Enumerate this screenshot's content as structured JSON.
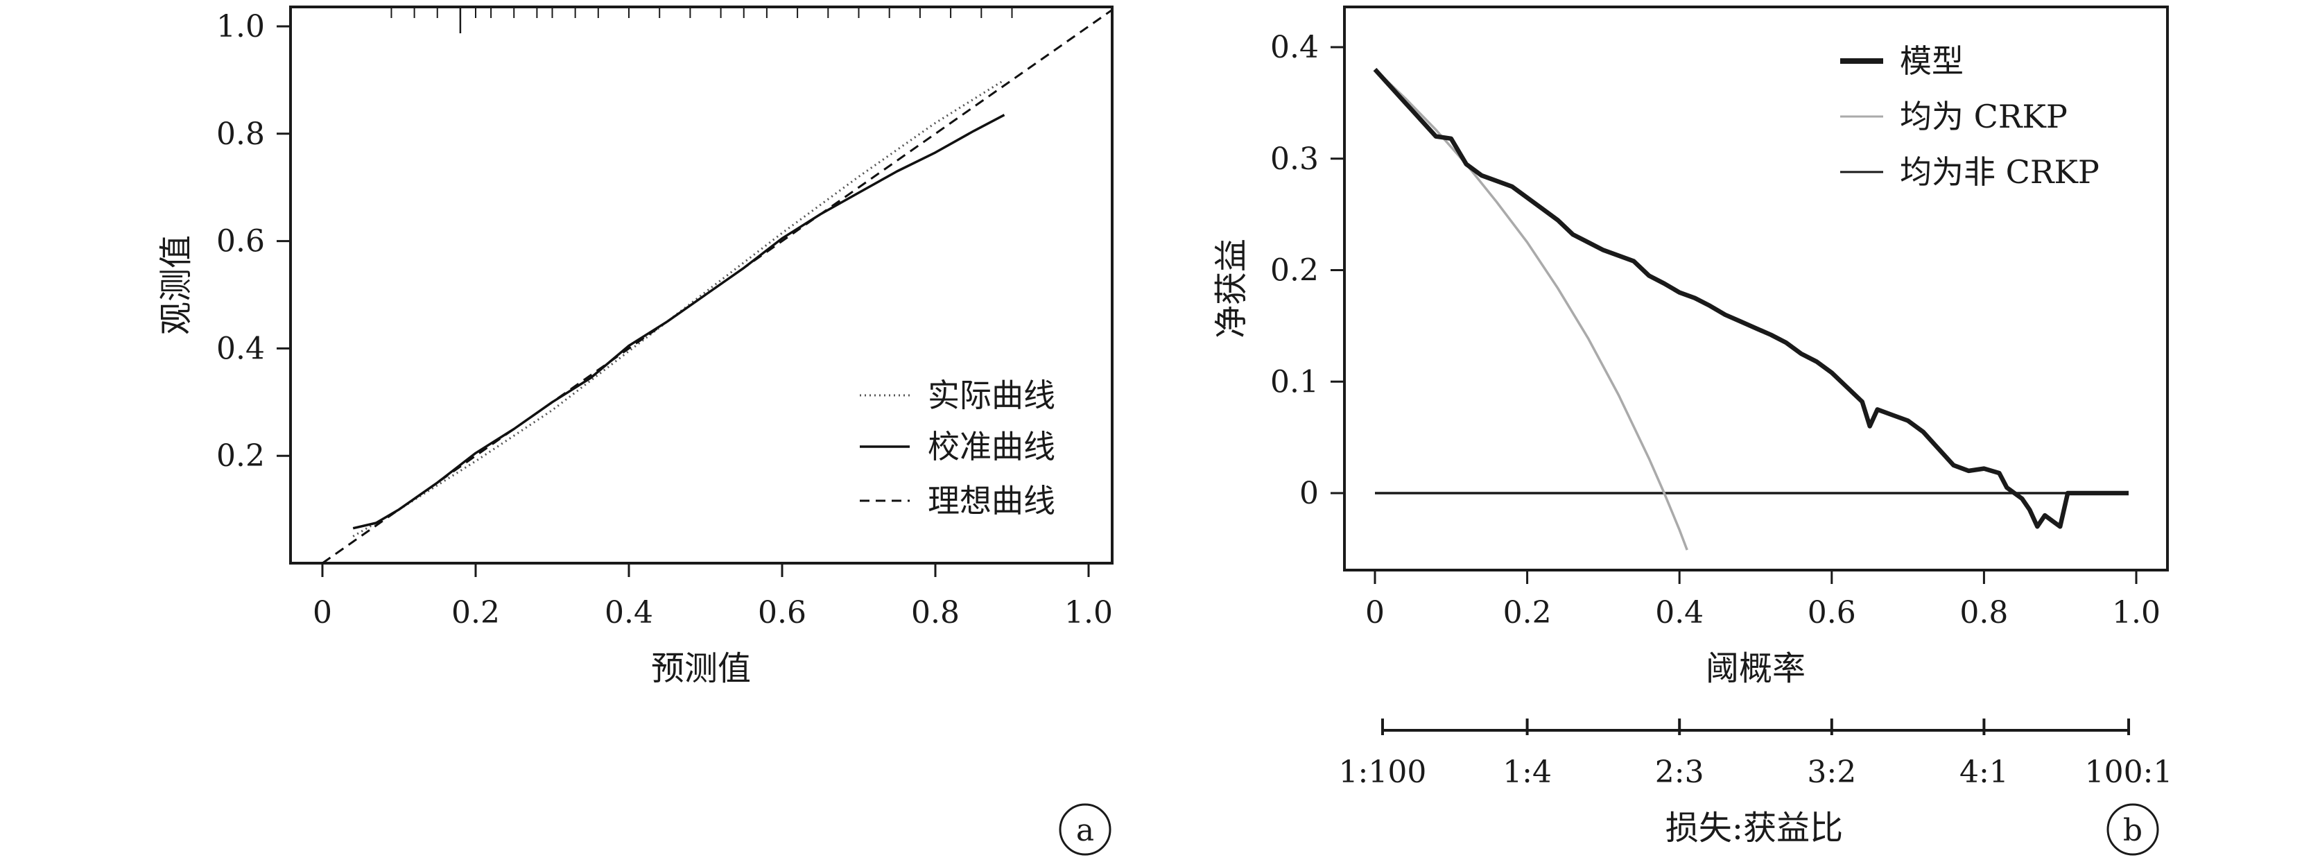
{
  "chart_data": [
    {
      "type": "line",
      "panel_label": "a",
      "xlabel": "预测值",
      "ylabel": "观测值",
      "xlim": [
        0,
        1.0
      ],
      "ylim": [
        0,
        1.0
      ],
      "xticks": [
        "0",
        "0.2",
        "0.4",
        "0.6",
        "0.8",
        "1.0"
      ],
      "yticks": [
        "0.2",
        "0.4",
        "0.6",
        "0.8",
        "1.0"
      ],
      "legend_position": "bottom-right",
      "grid": false,
      "series": [
        {
          "name": "实际曲线",
          "style": "dotted",
          "color": "#555555",
          "x": [
            0.04,
            0.1,
            0.2,
            0.3,
            0.4,
            0.5,
            0.6,
            0.7,
            0.8,
            0.89
          ],
          "y": [
            0.05,
            0.1,
            0.19,
            0.285,
            0.395,
            0.505,
            0.615,
            0.72,
            0.82,
            0.9
          ]
        },
        {
          "name": "校准曲线",
          "style": "solid",
          "color": "#111111",
          "x": [
            0.04,
            0.07,
            0.1,
            0.15,
            0.2,
            0.25,
            0.3,
            0.35,
            0.4,
            0.45,
            0.5,
            0.55,
            0.6,
            0.65,
            0.7,
            0.75,
            0.8,
            0.85,
            0.89
          ],
          "y": [
            0.065,
            0.075,
            0.1,
            0.15,
            0.205,
            0.25,
            0.3,
            0.345,
            0.405,
            0.45,
            0.5,
            0.55,
            0.605,
            0.65,
            0.69,
            0.73,
            0.765,
            0.805,
            0.835
          ]
        },
        {
          "name": "理想曲线",
          "style": "dashed",
          "color": "#111111",
          "x": [
            0,
            1.03
          ],
          "y": [
            0,
            1.03
          ]
        }
      ],
      "rug_x": [
        0.09,
        0.12,
        0.15,
        0.18,
        0.2,
        0.22,
        0.25,
        0.28,
        0.3,
        0.33,
        0.36,
        0.4,
        0.44,
        0.48,
        0.52,
        0.55,
        0.58,
        0.62,
        0.66,
        0.7,
        0.74,
        0.78,
        0.82,
        0.86,
        0.9
      ],
      "rug_major_x": [
        0.18
      ]
    },
    {
      "type": "line",
      "panel_label": "b",
      "xlabel": "阈概率",
      "ylabel": "净获益",
      "xlim": [
        -0.04,
        1.04
      ],
      "ylim": [
        -0.07,
        0.44
      ],
      "xticks": [
        "0",
        "0.2",
        "0.4",
        "0.6",
        "0.8",
        "1.0"
      ],
      "yticks": [
        "0",
        "0.1",
        "0.2",
        "0.3",
        "0.4"
      ],
      "legend_position": "top-right",
      "grid": false,
      "secondary_axis": {
        "title": "损失:获益比",
        "ticks": [
          "1:100",
          "1:4",
          "2:3",
          "3:2",
          "4:1",
          "100:1"
        ],
        "tick_positions": [
          0.01,
          0.2,
          0.4,
          0.6,
          0.8,
          0.99
        ]
      },
      "series": [
        {
          "name": "模型",
          "style": "bold",
          "color": "#1a1a1a",
          "x": [
            0.0,
            0.02,
            0.04,
            0.06,
            0.08,
            0.1,
            0.12,
            0.14,
            0.16,
            0.18,
            0.2,
            0.22,
            0.24,
            0.26,
            0.28,
            0.3,
            0.32,
            0.34,
            0.36,
            0.38,
            0.4,
            0.42,
            0.44,
            0.46,
            0.48,
            0.5,
            0.52,
            0.54,
            0.56,
            0.58,
            0.6,
            0.62,
            0.64,
            0.65,
            0.66,
            0.68,
            0.7,
            0.72,
            0.74,
            0.76,
            0.78,
            0.8,
            0.82,
            0.83,
            0.85,
            0.86,
            0.87,
            0.88,
            0.89,
            0.9,
            0.91,
            0.93,
            0.95,
            0.97,
            0.99
          ],
          "y": [
            0.38,
            0.365,
            0.35,
            0.335,
            0.32,
            0.318,
            0.295,
            0.285,
            0.28,
            0.275,
            0.265,
            0.255,
            0.245,
            0.232,
            0.225,
            0.218,
            0.213,
            0.208,
            0.195,
            0.188,
            0.18,
            0.175,
            0.168,
            0.16,
            0.154,
            0.148,
            0.142,
            0.135,
            0.125,
            0.118,
            0.108,
            0.095,
            0.082,
            0.06,
            0.075,
            0.07,
            0.065,
            0.055,
            0.04,
            0.025,
            0.02,
            0.022,
            0.018,
            0.005,
            -0.005,
            -0.015,
            -0.03,
            -0.02,
            -0.025,
            -0.03,
            0.0,
            0.0,
            0.0,
            0.0,
            0.0
          ]
        },
        {
          "name": "均为 CRKP",
          "style": "solid",
          "color": "#aaaaaa",
          "x": [
            0.0,
            0.04,
            0.08,
            0.12,
            0.16,
            0.2,
            0.24,
            0.28,
            0.32,
            0.36,
            0.38,
            0.4,
            0.41
          ],
          "y": [
            0.38,
            0.354,
            0.326,
            0.295,
            0.261,
            0.225,
            0.184,
            0.139,
            0.088,
            0.031,
            0.0,
            -0.033,
            -0.051
          ]
        },
        {
          "name": "均为非 CRKP",
          "style": "solid",
          "color": "#1a1a1a",
          "x": [
            0.0,
            0.99
          ],
          "y": [
            0.0,
            0.0
          ]
        }
      ]
    }
  ],
  "colors": {
    "axis": "#1a1a1a",
    "background": "#ffffff"
  }
}
